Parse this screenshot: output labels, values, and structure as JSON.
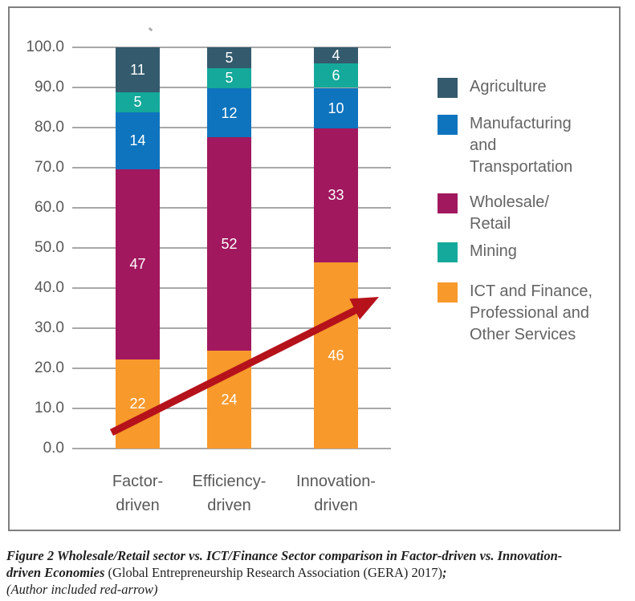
{
  "figure": {
    "caption": {
      "lines": [
        {
          "segments": [
            {
              "style": "bold-italic",
              "text": "Figure 2 Wholesale/Retail sector vs. ICT/Finance Sector comparison in Factor-driven vs. Innovation-"
            }
          ]
        },
        {
          "segments": [
            {
              "style": "bold-italic",
              "text": "driven Economies "
            },
            {
              "style": "normal",
              "text": "(Global Entrepreneurship Research Association (GERA) 2017)"
            },
            {
              "style": "bold-italic",
              "text": ";"
            }
          ]
        },
        {
          "segments": [
            {
              "style": "italic",
              "text": "(Author included red-arrow)"
            }
          ]
        }
      ]
    }
  },
  "chart_data": {
    "type": "bar",
    "subtype": "stacked-column",
    "categories": [
      "Factor-driven",
      "Efficiency-driven",
      "Innovation-driven"
    ],
    "categories_display": [
      [
        "Factor-",
        "driven"
      ],
      [
        "Efficiency-",
        "driven"
      ],
      [
        "Innovation-",
        "driven"
      ]
    ],
    "series": [
      {
        "name": "ICT and Finance, Professional and Other Services",
        "color": "#F8992C",
        "values": [
          22,
          24,
          46
        ]
      },
      {
        "name": "Wholesale/Retail",
        "color": "#A1185F",
        "values": [
          47,
          52,
          33
        ]
      },
      {
        "name": "Manufacturing and Transportation",
        "color": "#0E74BE",
        "values": [
          14,
          12,
          10
        ]
      },
      {
        "name": "Mining",
        "color": "#14A99A",
        "values": [
          5,
          5,
          6
        ]
      },
      {
        "name": "Agriculture",
        "color": "#345A6D",
        "values": [
          11,
          5,
          4
        ]
      }
    ],
    "stack_order": "bottom-to-top",
    "y_axis": {
      "min": 0,
      "max": 100,
      "ticks": [
        "100.0",
        "90.0",
        "80.0",
        "70.0",
        "60.0",
        "50.0",
        "40.0",
        "30.0",
        "20.0",
        "10.0",
        "0.0"
      ]
    },
    "grid": true,
    "legend": {
      "position": "right",
      "items": [
        {
          "series": "Agriculture",
          "color": "#345A6D",
          "lines": [
            "Agriculture"
          ]
        },
        {
          "series": "Manufacturing and Transportation",
          "color": "#0E74BE",
          "lines": [
            "Manufacturing",
            "and",
            "Transportation"
          ]
        },
        {
          "series": "Wholesale/Retail",
          "color": "#A1185F",
          "lines": [
            "Wholesale/",
            "Retail"
          ]
        },
        {
          "series": "Mining",
          "color": "#14A99A",
          "lines": [
            "Mining"
          ]
        },
        {
          "series": "ICT and Finance, Professional and Other Services",
          "color": "#F8992C",
          "lines": [
            "ICT and Finance,",
            "Professional and",
            "Other Services"
          ]
        }
      ]
    },
    "annotation": {
      "type": "arrow",
      "color": "#B5121B",
      "direction": "up-right",
      "note": "author-added red trend arrow rising from Factor-driven toward Innovation-driven"
    }
  }
}
